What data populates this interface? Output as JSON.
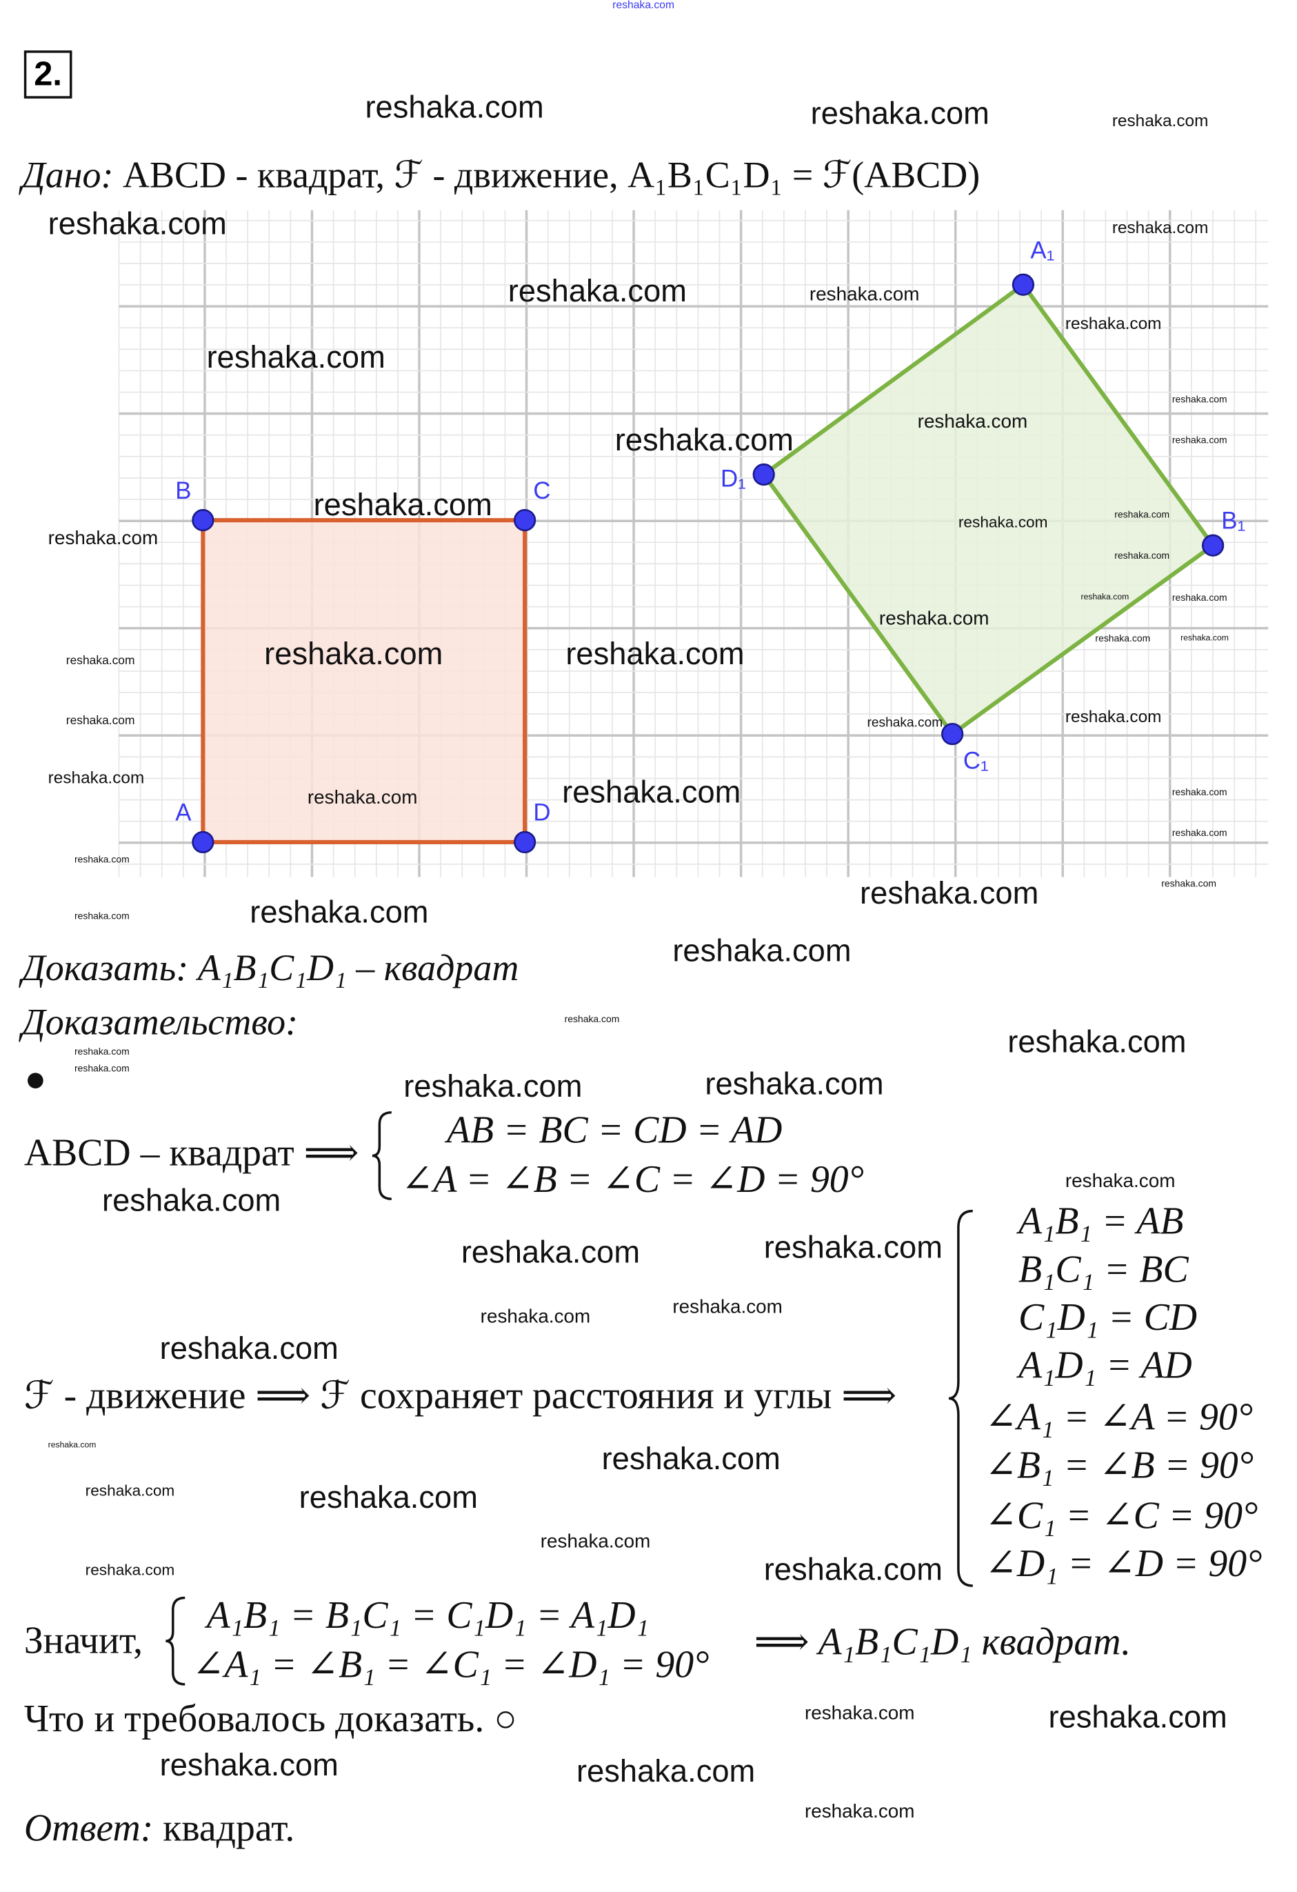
{
  "problem_number": "2.",
  "given": {
    "label": "Дано:",
    "text": "ABCD - квадрат, ℱ - движение, A₁B₁C₁D₁ = ℱ(ABCD)"
  },
  "figure": {
    "grid": true,
    "square_abcd": {
      "fill": "#fbe3db",
      "stroke": "#d9602f",
      "labels": [
        "A",
        "B",
        "C",
        "D"
      ]
    },
    "square_a1b1c1d1": {
      "fill": "#e6f0db",
      "stroke": "#7cb342",
      "labels": [
        "A₁",
        "B₁",
        "C₁",
        "D₁"
      ]
    },
    "point_color": "#3b3bf0"
  },
  "prove": {
    "label": "Доказать:",
    "text": "A₁B₁C₁D₁ – квадрат"
  },
  "proof_label": "Доказательство:",
  "step1": {
    "left": "ABCD – квадрат ⟹",
    "lines": [
      "AB = BC = CD = AD",
      "∠A = ∠B = ∠C = ∠D = 90°"
    ]
  },
  "step2": {
    "left": "ℱ - движение ⟹  ℱ сохраняет расстояния и углы ⟹",
    "lines": [
      "A₁B₁ = AB",
      "B₁C₁ = BC",
      "C₁D₁ = CD",
      "A₁D₁ = AD",
      "∠A₁ = ∠A = 90°",
      "∠B₁ = ∠B = 90°",
      "∠C₁ = ∠C = 90°",
      "∠D₁ = ∠D = 90°"
    ]
  },
  "step3": {
    "left": "Значит,",
    "lines": [
      "A₁B₁ = B₁C₁ = C₁D₁ = A₁D₁",
      "∠A₁ = ∠B₁ = ∠C₁ = ∠D₁ = 90°"
    ],
    "right": "⟹ A₁B₁C₁D₁ квадрат."
  },
  "qed": "Что и требовалось доказать. ○",
  "answer": {
    "label": "Ответ:",
    "text": "квадрат."
  },
  "watermark": "reshaka.com"
}
